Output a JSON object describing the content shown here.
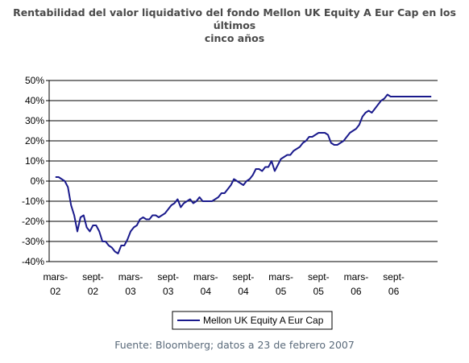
{
  "title_line1": "Rentabilidad del valor liquidativo del fondo Mellon UK Equity A Eur Cap en los últimos",
  "title_line2": "cinco años",
  "source": "Fuente: Bloomberg; datos a 23 de febrero 2007",
  "colors": {
    "line": "#1a1a8c",
    "grid": "#000000",
    "title": "#4a4a4a",
    "source": "#5a6a7a"
  },
  "chart_data": {
    "type": "line",
    "title": "Rentabilidad del valor liquidativo del fondo Mellon UK Equity A Eur Cap en los últimos cinco años",
    "ylim": [
      -40,
      50
    ],
    "y_ticks": [
      50,
      40,
      30,
      20,
      10,
      0,
      -10,
      -20,
      -30,
      -40
    ],
    "y_tick_labels": [
      "50%",
      "40%",
      "30%",
      "20%",
      "10%",
      "0%",
      "-10%",
      "-20%",
      "-30%",
      "-40%"
    ],
    "x_tick_labels": [
      [
        "mars-",
        "02"
      ],
      [
        "sept-",
        "02"
      ],
      [
        "mars-",
        "03"
      ],
      [
        "sept-",
        "03"
      ],
      [
        "mars-",
        "04"
      ],
      [
        "sept-",
        "04"
      ],
      [
        "mars-",
        "05"
      ],
      [
        "sept-",
        "05"
      ],
      [
        "mars-",
        "06"
      ],
      [
        "sept-",
        "06"
      ]
    ],
    "x_tick_months": [
      0,
      6,
      12,
      18,
      24,
      30,
      36,
      42,
      48,
      54
    ],
    "grid": true,
    "legend_position": "bottom",
    "series": [
      {
        "name": "Mellon UK Equity A Eur Cap",
        "x": [
          0,
          0.5,
          1,
          1.5,
          2,
          2.5,
          3,
          3.5,
          4,
          4.5,
          5,
          5.5,
          6,
          6.5,
          7,
          7.5,
          8,
          8.5,
          9,
          9.5,
          10,
          10.5,
          11,
          11.5,
          12,
          12.5,
          13,
          13.5,
          14,
          14.5,
          15,
          15.5,
          16,
          16.5,
          17,
          17.5,
          18,
          18.5,
          19,
          19.5,
          20,
          20.5,
          21,
          21.5,
          22,
          22.5,
          23,
          23.5,
          24,
          24.5,
          25,
          25.5,
          26,
          26.5,
          27,
          27.5,
          28,
          28.5,
          29,
          29.5,
          30,
          30.5,
          31,
          31.5,
          32,
          32.5,
          33,
          33.5,
          34,
          34.5,
          35,
          35.5,
          36,
          36.5,
          37,
          37.5,
          38,
          38.5,
          39,
          39.5,
          40,
          40.5,
          41,
          41.5,
          42,
          42.5,
          43,
          43.5,
          44,
          44.5,
          45,
          45.5,
          46,
          46.5,
          47,
          47.5,
          48,
          48.5,
          49,
          49.5,
          50,
          50.5,
          51,
          51.5,
          52,
          52.5,
          53,
          53.5,
          54,
          54.5,
          55,
          55.5,
          56,
          56.5,
          57,
          57.5,
          58,
          58.5,
          59,
          59.5,
          60
        ],
        "values": [
          2,
          2,
          1,
          0,
          -3,
          -12,
          -17,
          -25,
          -18,
          -17,
          -23,
          -25,
          -22,
          -22,
          -25,
          -30,
          -30,
          -32,
          -33,
          -35,
          -36,
          -32,
          -32,
          -29,
          -25,
          -23,
          -22,
          -19,
          -18,
          -19,
          -19,
          -17,
          -17,
          -18,
          -17,
          -16,
          -14,
          -12,
          -11,
          -9,
          -13,
          -11,
          -10,
          -9,
          -11,
          -10,
          -8,
          -10,
          -10,
          -10,
          -10,
          -9,
          -8,
          -6,
          -6,
          -4,
          -2,
          1,
          0,
          -1,
          -2,
          0,
          1,
          3,
          6,
          6,
          5,
          7,
          7,
          10,
          5,
          8,
          11,
          12,
          13,
          13,
          15,
          16,
          17,
          19,
          20,
          22,
          22,
          23,
          24,
          24,
          24,
          23,
          19,
          18,
          18,
          19,
          20,
          22,
          24,
          25,
          26,
          28,
          32,
          34,
          35,
          34,
          36,
          38,
          40,
          41,
          43,
          42,
          42,
          42,
          42,
          42,
          42,
          42,
          42,
          42,
          42,
          42,
          42,
          42,
          42
        ]
      }
    ]
  }
}
